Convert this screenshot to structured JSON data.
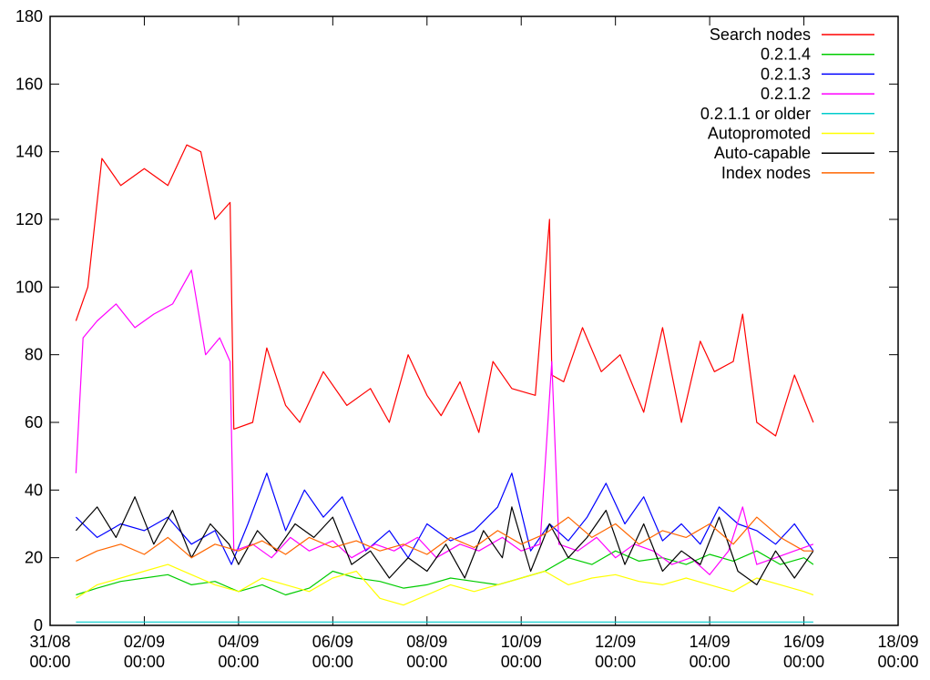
{
  "chart_data": {
    "type": "line",
    "title": "",
    "xlabel": "",
    "ylabel": "",
    "ylim": [
      0,
      180
    ],
    "xlim_days": [
      0,
      18
    ],
    "y_ticks": [
      0,
      20,
      40,
      60,
      80,
      100,
      120,
      140,
      160,
      180
    ],
    "x_ticks": [
      {
        "day": 0,
        "line1": "31/08",
        "line2": "00:00"
      },
      {
        "day": 2,
        "line1": "02/09",
        "line2": "00:00"
      },
      {
        "day": 4,
        "line1": "04/09",
        "line2": "00:00"
      },
      {
        "day": 6,
        "line1": "06/09",
        "line2": "00:00"
      },
      {
        "day": 8,
        "line1": "08/09",
        "line2": "00:00"
      },
      {
        "day": 10,
        "line1": "10/09",
        "line2": "00:00"
      },
      {
        "day": 12,
        "line1": "12/09",
        "line2": "00:00"
      },
      {
        "day": 14,
        "line1": "14/09",
        "line2": "00:00"
      },
      {
        "day": 16,
        "line1": "16/09",
        "line2": "00:00"
      },
      {
        "day": 18,
        "line1": "18/09",
        "line2": "00:00"
      }
    ],
    "grid": false,
    "legend_position": "top-right",
    "series": [
      {
        "name": "Search nodes",
        "color": "#ff0000",
        "x": [
          0.55,
          0.8,
          1.1,
          1.5,
          2.0,
          2.5,
          2.9,
          3.2,
          3.5,
          3.82,
          3.9,
          4.3,
          4.6,
          5.0,
          5.3,
          5.8,
          6.3,
          6.8,
          7.2,
          7.6,
          8.0,
          8.3,
          8.7,
          9.1,
          9.4,
          9.8,
          10.3,
          10.6,
          10.65,
          10.9,
          11.3,
          11.7,
          12.1,
          12.6,
          13.0,
          13.4,
          13.8,
          14.1,
          14.5,
          14.7,
          15.0,
          15.4,
          15.8,
          16.2
        ],
        "y": [
          90,
          100,
          138,
          130,
          135,
          130,
          142,
          140,
          120,
          125,
          58,
          60,
          82,
          65,
          60,
          75,
          65,
          70,
          60,
          80,
          68,
          62,
          72,
          57,
          78,
          70,
          68,
          120,
          74,
          72,
          88,
          75,
          80,
          63,
          88,
          60,
          84,
          75,
          78,
          92,
          60,
          56,
          74,
          60
        ]
      },
      {
        "name": "0.2.1.4",
        "color": "#00cc00",
        "x": [
          0.55,
          1.0,
          1.5,
          2.0,
          2.5,
          3.0,
          3.5,
          4.0,
          4.5,
          5.0,
          5.5,
          6.0,
          6.5,
          7.0,
          7.5,
          8.0,
          8.5,
          9.0,
          9.5,
          10.0,
          10.5,
          11.0,
          11.5,
          12.0,
          12.5,
          13.0,
          13.5,
          14.0,
          14.5,
          15.0,
          15.5,
          16.0,
          16.2
        ],
        "y": [
          9,
          11,
          13,
          14,
          15,
          12,
          13,
          10,
          12,
          9,
          11,
          16,
          14,
          13,
          11,
          12,
          14,
          13,
          12,
          14,
          16,
          20,
          18,
          22,
          19,
          20,
          18,
          21,
          19,
          22,
          18,
          20,
          18
        ]
      },
      {
        "name": "0.2.1.3",
        "color": "#0000ff",
        "x": [
          0.55,
          1.0,
          1.5,
          2.0,
          2.5,
          3.0,
          3.5,
          3.85,
          4.2,
          4.6,
          5.0,
          5.4,
          5.8,
          6.2,
          6.7,
          7.2,
          7.6,
          8.0,
          8.5,
          9.0,
          9.5,
          9.8,
          10.2,
          10.6,
          11.0,
          11.4,
          11.8,
          12.2,
          12.6,
          13.0,
          13.4,
          13.8,
          14.2,
          14.6,
          15.0,
          15.4,
          15.8,
          16.2
        ],
        "y": [
          32,
          26,
          30,
          28,
          32,
          24,
          28,
          18,
          30,
          45,
          28,
          40,
          32,
          38,
          22,
          28,
          20,
          30,
          25,
          28,
          35,
          45,
          22,
          30,
          25,
          32,
          42,
          30,
          38,
          25,
          30,
          24,
          35,
          30,
          28,
          24,
          30,
          22
        ]
      },
      {
        "name": "0.2.1.2",
        "color": "#ff00ff",
        "x": [
          0.55,
          0.7,
          1.0,
          1.4,
          1.8,
          2.2,
          2.6,
          3.0,
          3.3,
          3.6,
          3.82,
          3.9,
          4.3,
          4.7,
          5.1,
          5.5,
          6.0,
          6.4,
          6.9,
          7.3,
          7.8,
          8.2,
          8.7,
          9.1,
          9.6,
          10.0,
          10.4,
          10.65,
          10.8,
          11.2,
          11.6,
          12.0,
          12.4,
          12.8,
          13.2,
          13.6,
          14.0,
          14.4,
          14.7,
          15.0,
          15.4,
          15.8,
          16.2
        ],
        "y": [
          45,
          85,
          90,
          95,
          88,
          92,
          95,
          105,
          80,
          85,
          78,
          22,
          24,
          20,
          26,
          22,
          25,
          20,
          24,
          22,
          26,
          20,
          24,
          22,
          26,
          22,
          24,
          78,
          24,
          22,
          26,
          20,
          24,
          22,
          18,
          20,
          15,
          22,
          35,
          18,
          20,
          22,
          24
        ]
      },
      {
        "name": "0.2.1.1 or older",
        "color": "#00cccc",
        "x": [
          0.55,
          16.2
        ],
        "y": [
          1,
          1
        ]
      },
      {
        "name": "Autopromoted",
        "color": "#ffff00",
        "x": [
          0.55,
          1.0,
          1.5,
          2.0,
          2.5,
          3.0,
          3.5,
          4.0,
          4.5,
          5.0,
          5.5,
          6.0,
          6.5,
          7.0,
          7.5,
          8.0,
          8.5,
          9.0,
          9.5,
          10.0,
          10.5,
          11.0,
          11.5,
          12.0,
          12.5,
          13.0,
          13.5,
          14.0,
          14.5,
          15.0,
          15.5,
          16.0,
          16.2
        ],
        "y": [
          8,
          12,
          14,
          16,
          18,
          15,
          12,
          10,
          14,
          12,
          10,
          14,
          16,
          8,
          6,
          9,
          12,
          10,
          12,
          14,
          16,
          12,
          14,
          15,
          13,
          12,
          14,
          12,
          10,
          14,
          12,
          10,
          9
        ]
      },
      {
        "name": "Auto-capable",
        "color": "#000000",
        "x": [
          0.55,
          1.0,
          1.4,
          1.8,
          2.2,
          2.6,
          3.0,
          3.4,
          3.8,
          4.0,
          4.4,
          4.8,
          5.2,
          5.6,
          6.0,
          6.4,
          6.8,
          7.2,
          7.6,
          8.0,
          8.4,
          8.8,
          9.2,
          9.6,
          9.8,
          10.2,
          10.6,
          11.0,
          11.4,
          11.8,
          12.2,
          12.6,
          13.0,
          13.4,
          13.8,
          14.2,
          14.6,
          15.0,
          15.4,
          15.8,
          16.2
        ],
        "y": [
          28,
          35,
          26,
          38,
          24,
          34,
          20,
          30,
          24,
          18,
          28,
          22,
          30,
          26,
          32,
          18,
          22,
          14,
          20,
          16,
          24,
          14,
          28,
          20,
          35,
          16,
          30,
          20,
          26,
          34,
          18,
          30,
          16,
          22,
          18,
          32,
          16,
          12,
          22,
          14,
          22
        ]
      },
      {
        "name": "Index nodes",
        "color": "#ff6600",
        "x": [
          0.55,
          1.0,
          1.5,
          2.0,
          2.5,
          3.0,
          3.5,
          4.0,
          4.5,
          5.0,
          5.5,
          6.0,
          6.5,
          7.0,
          7.5,
          8.0,
          8.5,
          9.0,
          9.5,
          10.0,
          10.5,
          11.0,
          11.5,
          12.0,
          12.5,
          13.0,
          13.5,
          14.0,
          14.5,
          15.0,
          15.5,
          16.0,
          16.2
        ],
        "y": [
          19,
          22,
          24,
          21,
          26,
          20,
          24,
          22,
          25,
          21,
          26,
          23,
          25,
          22,
          24,
          21,
          26,
          23,
          28,
          24,
          27,
          32,
          26,
          30,
          24,
          28,
          26,
          30,
          24,
          32,
          26,
          22,
          22
        ]
      }
    ]
  }
}
